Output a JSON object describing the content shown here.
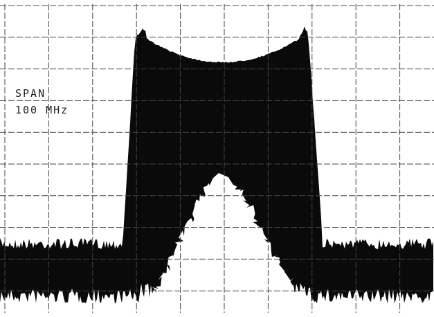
{
  "display": {
    "span_label": "SPAN",
    "span_value": "100 MHz"
  }
}
